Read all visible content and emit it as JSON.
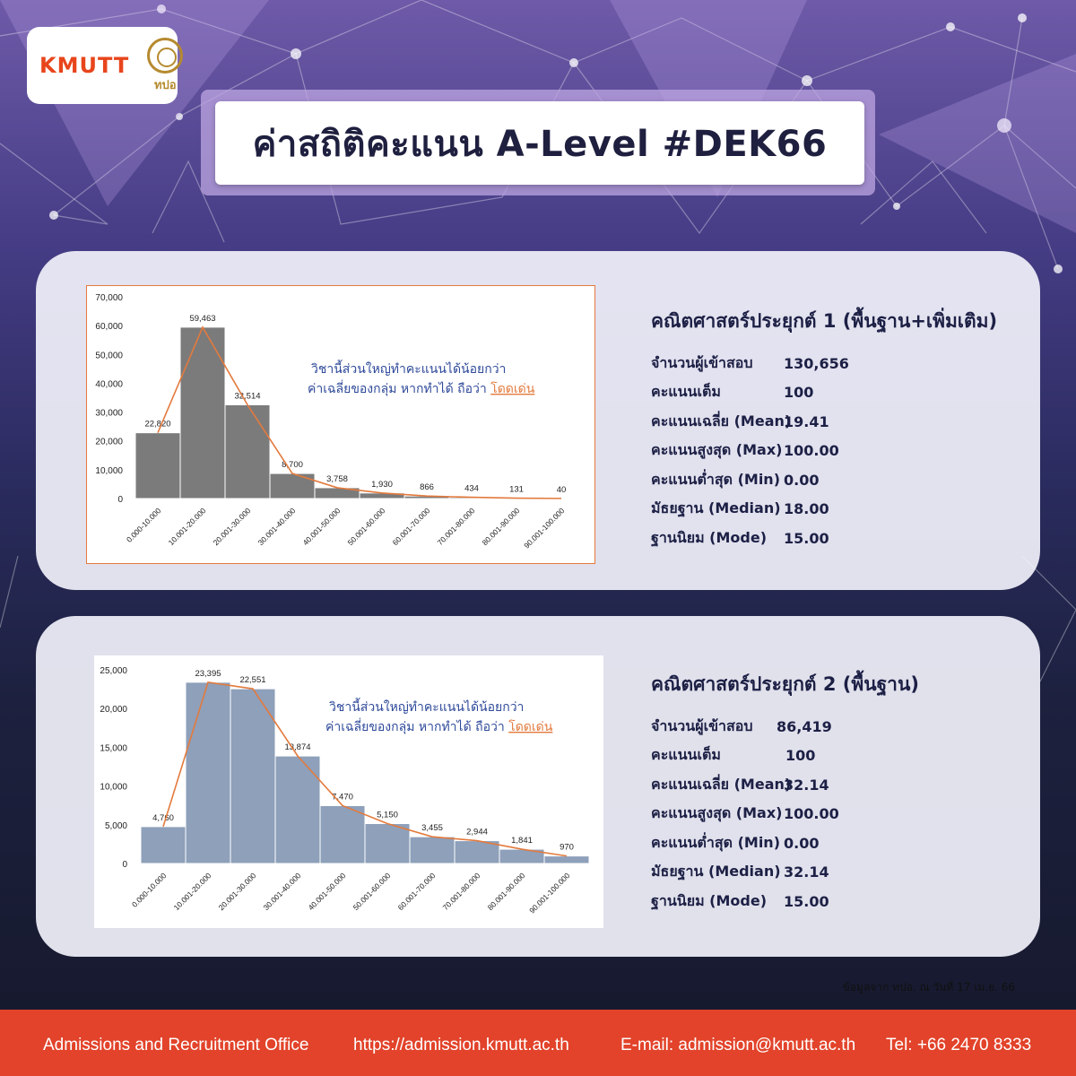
{
  "header": {
    "logo_text": "KMUTT",
    "logo_sub": "ทปอ",
    "title": "ค่าสถิติคะแนน A-Level #DEK66"
  },
  "colors": {
    "accent": "#e2432a",
    "bar1": "#7b7b7b",
    "bar2": "#8ea0ba",
    "trend": "#e37a3d",
    "note": "#2f4a9a",
    "title_text": "#1f1f3f"
  },
  "subjects": [
    {
      "title": "คณิตศาสตร์ประยุกต์ 1 (พื้นฐาน+เพิ่มเติม)",
      "stats": [
        {
          "label": "จำนวนผู้เข้าสอบ",
          "value": "130,656"
        },
        {
          "label": "คะแนนเต็ม",
          "value": "100"
        },
        {
          "label": "คะแนนเฉลี่ย (Mean)",
          "value": "19.41"
        },
        {
          "label": "คะแนนสูงสุด (Max)",
          "value": "100.00"
        },
        {
          "label": "คะแนนต่ำสุด (Min)",
          "value": "0.00"
        },
        {
          "label": "มัธยฐาน (Median)",
          "value": "18.00"
        },
        {
          "label": "ฐานนิยม (Mode)",
          "value": "15.00"
        }
      ],
      "note_line1": "วิชานี้ส่วนใหญ่ทำคะแนนได้น้อยกว่า",
      "note_line2": "ค่าเฉลี่ยของกลุ่ม หากทำได้ ถือว่า",
      "note_highlight": "โดดเด่น"
    },
    {
      "title": "คณิตศาสตร์ประยุกต์ 2 (พื้นฐาน)",
      "stats": [
        {
          "label": "จำนวนผู้เข้าสอบ",
          "value": "86,419"
        },
        {
          "label": "คะแนนเต็ม",
          "value": "100"
        },
        {
          "label": "คะแนนเฉลี่ย (Mean)",
          "value": "32.14"
        },
        {
          "label": "คะแนนสูงสุด (Max)",
          "value": "100.00"
        },
        {
          "label": "คะแนนต่ำสุด (Min)",
          "value": "0.00"
        },
        {
          "label": "มัธยฐาน (Median)",
          "value": "32.14"
        },
        {
          "label": "ฐานนิยม (Mode)",
          "value": "15.00"
        }
      ],
      "note_line1": "วิชานี้ส่วนใหญ่ทำคะแนนได้น้อยกว่า",
      "note_line2": "ค่าเฉลี่ยของกลุ่ม หากทำได้ ถือว่า",
      "note_highlight": "โดดเด่น"
    }
  ],
  "chart_data": [
    {
      "type": "bar",
      "categories": [
        "0.000-10.000",
        "10.001-20.000",
        "20.001-30.000",
        "30.001-40.000",
        "40.001-50.000",
        "50.001-60.000",
        "60.001-70.000",
        "70.001-80.000",
        "80.001-90.000",
        "90.001-100.000"
      ],
      "values": [
        22820,
        59463,
        32514,
        8700,
        3758,
        1930,
        866,
        434,
        131,
        40
      ],
      "value_labels": [
        "22,820",
        "59,463",
        "32,514",
        "8,700",
        "3,758",
        "1,930",
        "866",
        "434",
        "131",
        "40"
      ],
      "yticks": [
        "0",
        "10,000",
        "20,000",
        "30,000",
        "40,000",
        "50,000",
        "60,000",
        "70,000"
      ],
      "ylim": [
        0,
        70000
      ],
      "grid": false,
      "trend_line": true
    },
    {
      "type": "bar",
      "categories": [
        "0.000-10.000",
        "10.001-20.000",
        "20.001-30.000",
        "30.001-40.000",
        "40.001-50.000",
        "50.001-60.000",
        "60.001-70.000",
        "70.001-80.000",
        "80.001-90.000",
        "90.001-100.000"
      ],
      "values": [
        4760,
        23395,
        22551,
        13874,
        7470,
        5150,
        3455,
        2944,
        1841,
        970
      ],
      "value_labels": [
        "4,760",
        "23,395",
        "22,551",
        "13,874",
        "7,470",
        "5,150",
        "3,455",
        "2,944",
        "1,841",
        "970"
      ],
      "yticks": [
        "0",
        "5,000",
        "10,000",
        "15,000",
        "20,000",
        "25,000"
      ],
      "ylim": [
        0,
        25000
      ],
      "grid": false,
      "trend_line": true
    }
  ],
  "source_note": "ข้อมูลจาก ทปอ. ณ วันที่ 17 เม.ย. 66",
  "footer": {
    "office": "Admissions and Recruitment Office",
    "website": "https://admission.kmutt.ac.th",
    "email": "E-mail: admission@kmutt.ac.th",
    "tel": "Tel: +66 2470 8333"
  }
}
